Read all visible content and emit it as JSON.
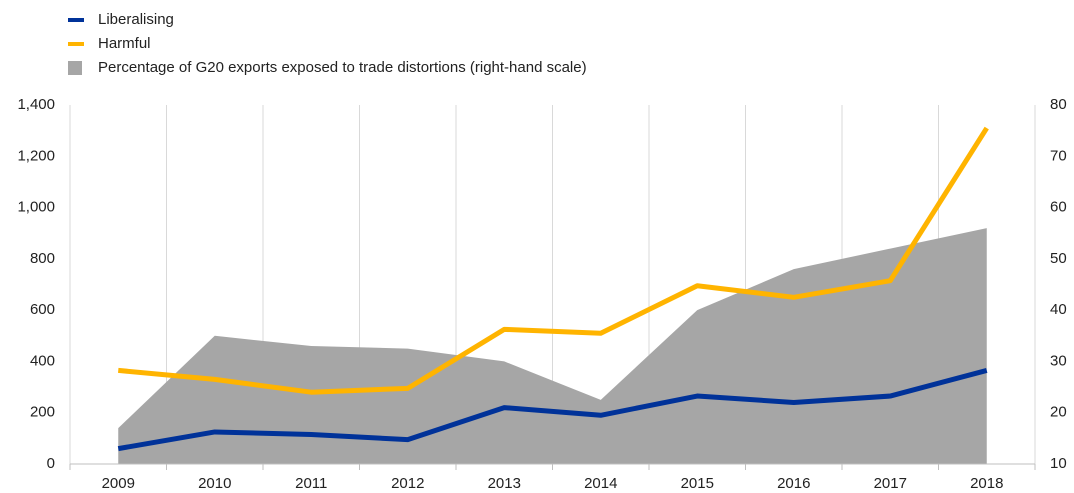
{
  "chart_data": {
    "type": "line",
    "categories": [
      "2009",
      "2010",
      "2011",
      "2012",
      "2013",
      "2014",
      "2015",
      "2016",
      "2017",
      "2018"
    ],
    "series": [
      {
        "name": "Liberalising",
        "color": "#003299",
        "values": [
          60,
          125,
          115,
          95,
          220,
          190,
          265,
          240,
          265,
          365
        ]
      },
      {
        "name": "Harmful",
        "color": "#ffb400",
        "values": [
          365,
          330,
          280,
          295,
          525,
          510,
          695,
          650,
          715,
          1310
        ]
      },
      {
        "name": "Percentage of G20 exports exposed to trade distortions (right-hand scale)",
        "color": "#a6a6a6",
        "type": "area",
        "axis": "y2",
        "values": [
          17,
          35,
          33,
          32.5,
          30,
          22.5,
          40,
          48,
          52,
          56
        ]
      }
    ],
    "ylim": [
      0,
      1400
    ],
    "yticks": [
      0,
      200,
      400,
      600,
      800,
      {
        "value": 1000,
        "label": "1,000"
      },
      {
        "value": 1200,
        "label": "1,200"
      },
      {
        "value": 1400,
        "label": "1,400"
      }
    ],
    "y2lim": [
      10,
      80
    ],
    "y2ticks": [
      10,
      20,
      30,
      40,
      50,
      60,
      70,
      80
    ],
    "grid": true
  }
}
